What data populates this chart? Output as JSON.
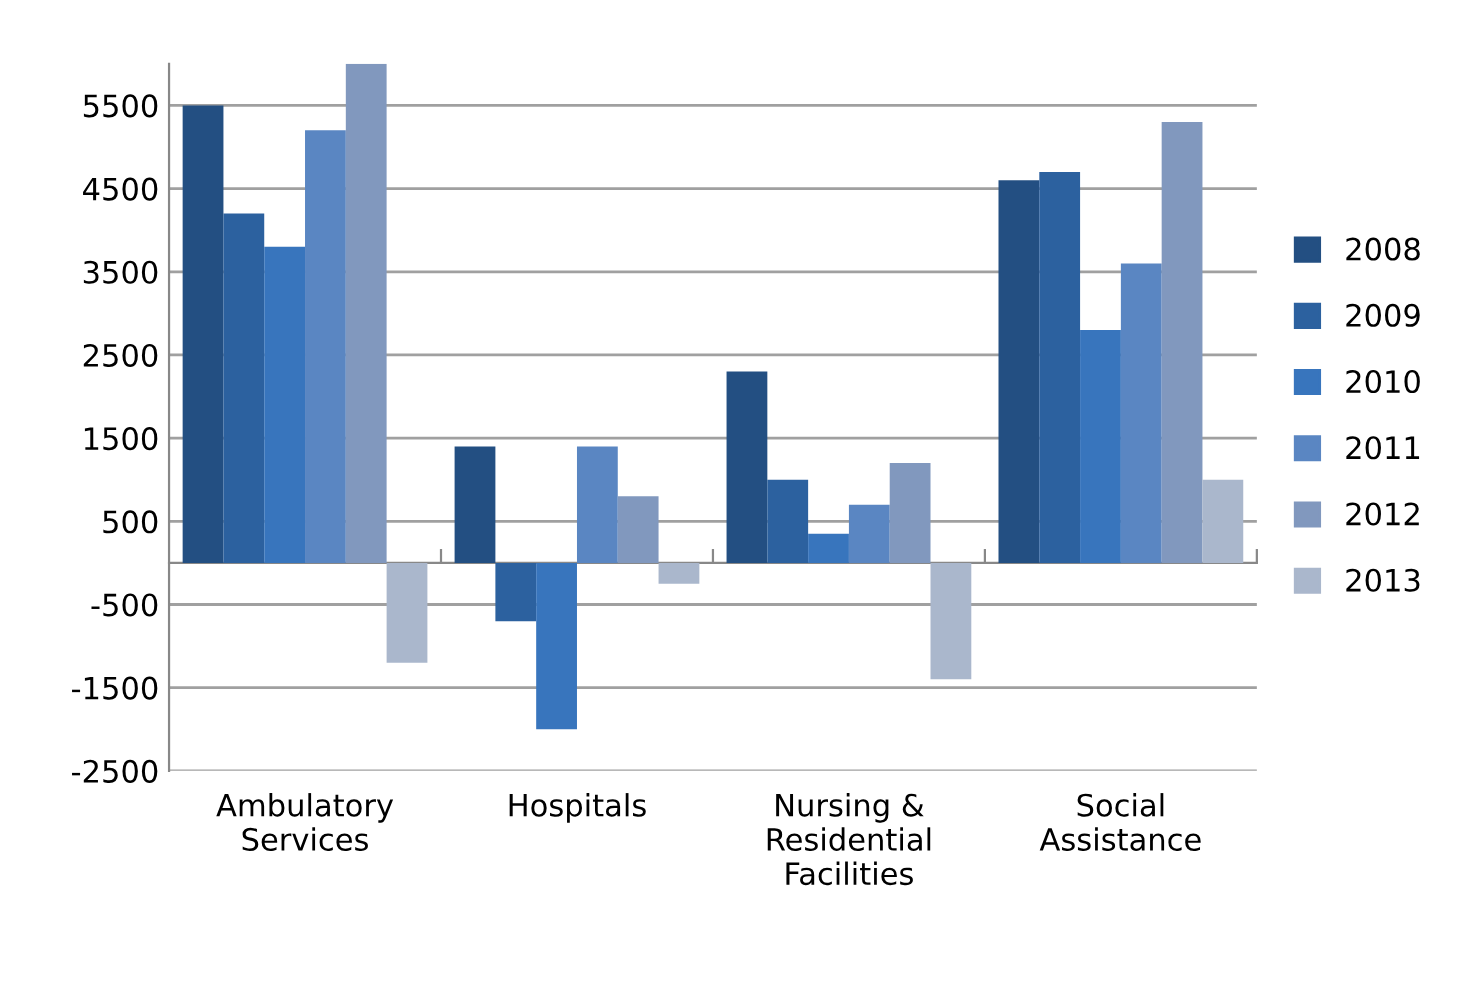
{
  "chart_data": {
    "type": "bar",
    "categories": [
      "Ambulatory\nServices",
      "Hospitals",
      "Nursing &\nResidential\nFacilities",
      "Social\nAssistance"
    ],
    "series": [
      {
        "name": "2008",
        "color": "#234f82",
        "values": [
          5500,
          1400,
          2300,
          4600
        ]
      },
      {
        "name": "2009",
        "color": "#2c619f",
        "values": [
          4200,
          -700,
          1000,
          4700
        ]
      },
      {
        "name": "2010",
        "color": "#3875bd",
        "values": [
          3800,
          -2000,
          350,
          2800
        ]
      },
      {
        "name": "2011",
        "color": "#5a86c2",
        "values": [
          5200,
          1400,
          700,
          3600
        ]
      },
      {
        "name": "2012",
        "color": "#8198be",
        "values": [
          6000,
          800,
          1200,
          5300
        ]
      },
      {
        "name": "2013",
        "color": "#aab7cc",
        "values": [
          -1200,
          -250,
          -1400,
          1000
        ]
      }
    ],
    "ylim": [
      -2500,
      6000
    ],
    "yticks": [
      -2500,
      -1500,
      -500,
      500,
      1500,
      2500,
      3500,
      4500,
      5500
    ],
    "grid": "y",
    "legend": "right"
  }
}
